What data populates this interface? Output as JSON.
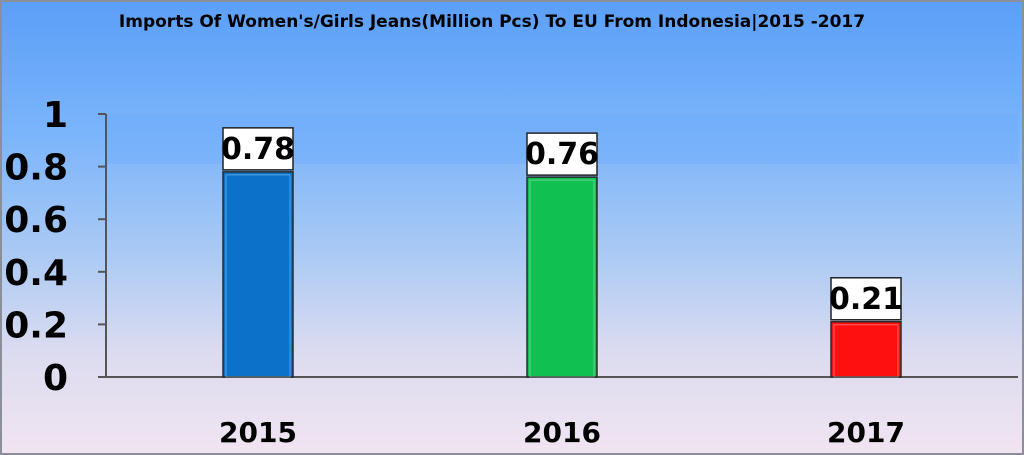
{
  "chart_data": {
    "type": "bar",
    "title": "Imports Of Women's/Girls Jeans(Million Pcs) To EU From Indonesia|2015 -2017",
    "categories": [
      "2015",
      "2016",
      "2017"
    ],
    "values": [
      0.78,
      0.76,
      0.21
    ],
    "value_labels": [
      "0.78",
      "0.76",
      "0.21"
    ],
    "colors": [
      "#0a72c9",
      "#10c050",
      "#ff1010"
    ],
    "ylim": [
      0,
      1
    ],
    "yticks": [
      "0",
      "0.2",
      "0.4",
      "0.6",
      "0.8",
      "1"
    ],
    "ytick_values": [
      0,
      0.2,
      0.4,
      0.6,
      0.8,
      1
    ],
    "grid": false,
    "legend": "none"
  }
}
